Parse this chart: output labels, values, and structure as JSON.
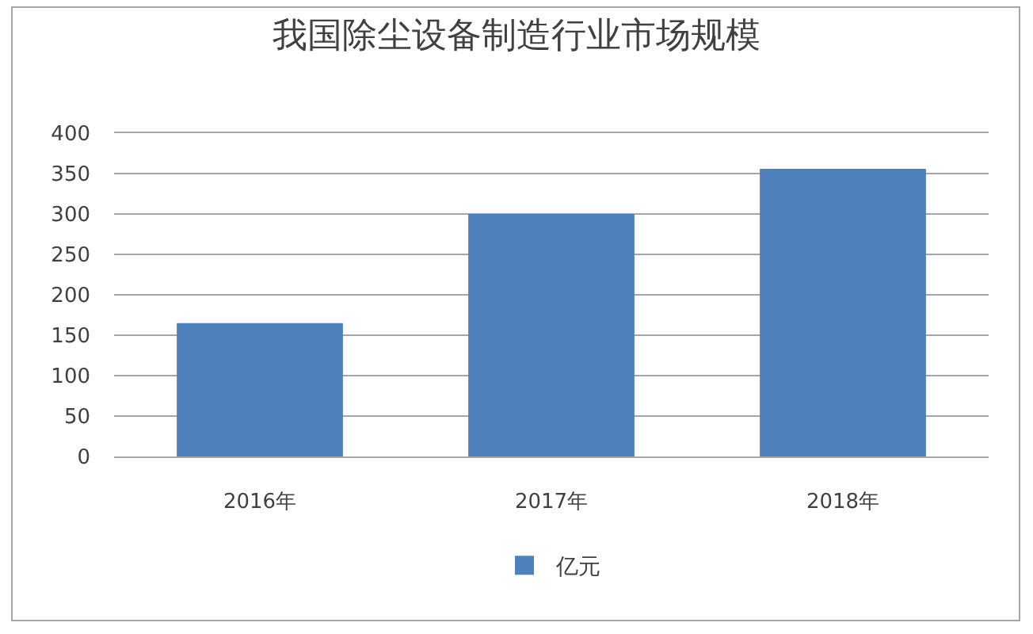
{
  "chart_data": {
    "type": "bar",
    "title": "我国除尘设备制造行业市场规模",
    "categories": [
      "2016年",
      "2017年",
      "2018年"
    ],
    "series": [
      {
        "name": "亿元",
        "color": "#4f81bd",
        "values": [
          165,
          300,
          356
        ]
      }
    ],
    "ylim": [
      0,
      400
    ],
    "yticks": [
      0,
      50,
      100,
      150,
      200,
      250,
      300,
      350,
      400
    ],
    "grid": "y",
    "legend": "bottom"
  }
}
